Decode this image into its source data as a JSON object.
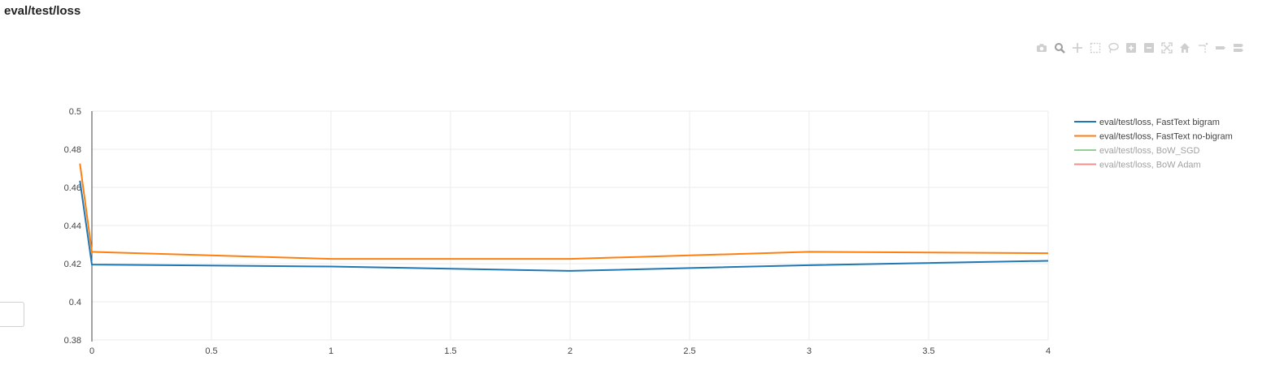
{
  "page": {
    "title": "eval/test/loss"
  },
  "toolbar": {
    "icons": [
      "camera-icon",
      "zoom-icon",
      "pan-icon",
      "box-select-icon",
      "lasso-select-icon",
      "zoom-in-icon",
      "zoom-out-icon",
      "autoscale-icon",
      "reset-axes-icon",
      "spike-lines-icon",
      "hover-closest-icon",
      "hover-compare-icon"
    ]
  },
  "chart_data": {
    "type": "line",
    "title": "eval/test/loss",
    "xlabel": "",
    "ylabel": "",
    "xlim": [
      0,
      4
    ],
    "ylim": [
      0.38,
      0.5
    ],
    "x_ticks": [
      0,
      0.5,
      1,
      1.5,
      2,
      2.5,
      3,
      3.5,
      4
    ],
    "y_ticks": [
      0.38,
      0.4,
      0.42,
      0.44,
      0.46,
      0.48,
      0.5
    ],
    "grid": true,
    "legend_position": "top-right",
    "series": [
      {
        "name": "eval/test/loss, FastText bigram",
        "color": "#1f77b4",
        "visible": true,
        "x": [
          -0.05,
          0,
          1,
          2,
          3,
          4
        ],
        "y": [
          0.4635,
          0.4195,
          0.4185,
          0.4162,
          0.4192,
          0.4215
        ]
      },
      {
        "name": "eval/test/loss, FastText no-bigram",
        "color": "#ff7f0e",
        "visible": true,
        "x": [
          -0.05,
          0,
          1,
          2,
          3,
          4
        ],
        "y": [
          0.4725,
          0.4262,
          0.4225,
          0.4225,
          0.4262,
          0.4255
        ]
      },
      {
        "name": "eval/test/loss, BoW_SGD",
        "color": "#2ca02c",
        "visible": false,
        "x": [],
        "y": []
      },
      {
        "name": "eval/test/loss, BoW Adam",
        "color": "#d62728",
        "visible": false,
        "x": [],
        "y": []
      }
    ]
  }
}
